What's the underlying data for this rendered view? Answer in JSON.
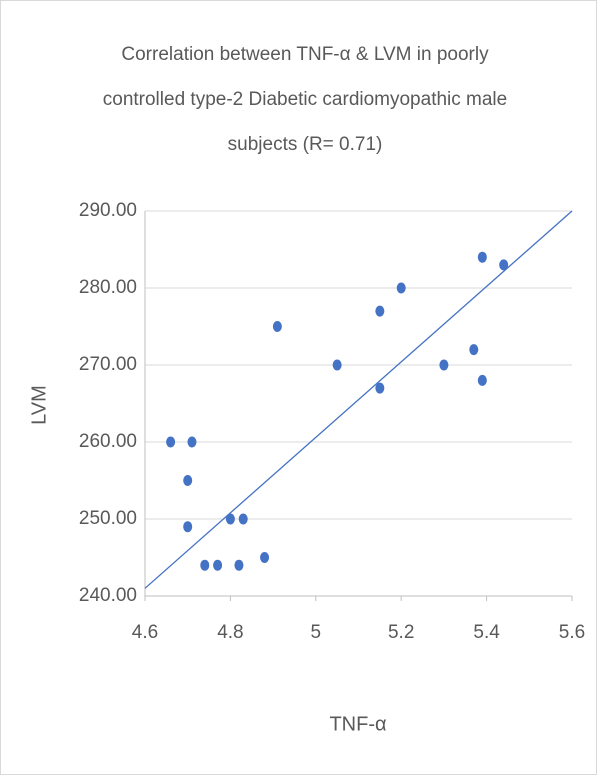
{
  "chart_data": {
    "type": "scatter",
    "title": [
      "Correlation between TNF-α & LVM in poorly",
      "controlled type-2  Diabetic cardiomyopathic male",
      "subjects (R= 0.71)"
    ],
    "x_label": "TNF-α",
    "y_label": "LVM",
    "series": [
      {
        "color": "#4472c4",
        "x": [
          4.66,
          4.71,
          4.7,
          4.7,
          4.74,
          4.77,
          4.8,
          4.83,
          4.82,
          4.88,
          4.91,
          5.05,
          5.15,
          5.15,
          5.2,
          5.3,
          5.37,
          5.39,
          5.39,
          5.44
        ],
        "values": [
          260,
          260,
          255,
          249,
          244,
          244,
          250,
          250,
          244,
          245,
          275,
          270,
          277,
          267,
          280,
          270,
          272,
          268,
          284,
          283
        ]
      }
    ],
    "trendline": {
      "color": "#4472c4",
      "x": [
        4.6,
        5.6
      ],
      "values": [
        241,
        290
      ]
    },
    "xlim": [
      4.6,
      5.6
    ],
    "xticks": [
      4.6,
      4.8,
      5,
      5.2,
      5.4,
      5.6
    ],
    "ylim": [
      240,
      290
    ],
    "yticks": [
      {
        "value": 240,
        "label": "240.00"
      },
      {
        "value": 250,
        "label": "250.00"
      },
      {
        "value": 260,
        "label": "260.00"
      },
      {
        "value": 270,
        "label": "270.00"
      },
      {
        "value": 280,
        "label": "280.00"
      },
      {
        "value": 290,
        "label": "290.00"
      }
    ],
    "grid": true
  }
}
